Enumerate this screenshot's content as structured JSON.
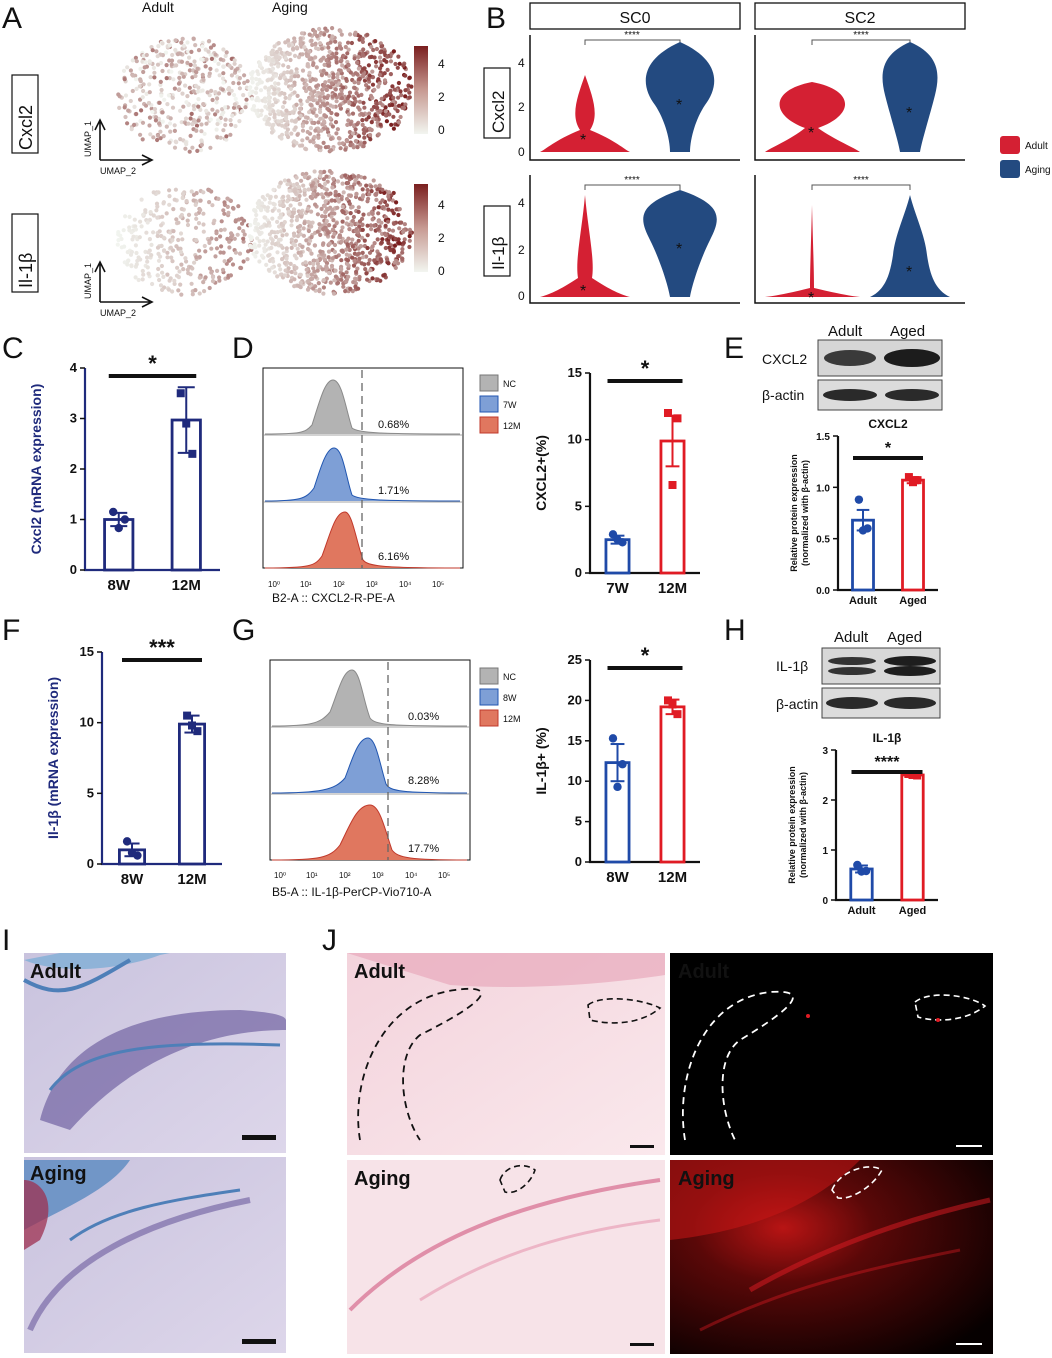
{
  "panel_labels": [
    "A",
    "B",
    "C",
    "D",
    "E",
    "F",
    "G",
    "H",
    "I",
    "J"
  ],
  "panelA": {
    "col_titles": [
      "Adult",
      "Aging"
    ],
    "row_labels": [
      "Cxcl2",
      "Il-1β"
    ],
    "axis_x": "UMAP_2",
    "axis_y": "UMAP_1",
    "colorbar_ticks": [
      "4",
      "2",
      "0"
    ],
    "colorbar_low": "#f2f5f0",
    "colorbar_high": "#7a1f1f"
  },
  "panelB": {
    "strip_titles": [
      "SC0",
      "SC2"
    ],
    "row_labels": [
      "Cxcl2",
      "Il-1β"
    ],
    "y_ticks": [
      "0",
      "2",
      "4"
    ],
    "significance": "****",
    "legend": [
      {
        "label": "Adult",
        "color": "#d42033"
      },
      {
        "label": "Aging",
        "color": "#234a80"
      }
    ]
  },
  "panelD": {
    "legend": [
      "NC",
      "7W",
      "12M"
    ],
    "percents": [
      "0.68%",
      "1.71%",
      "6.16%"
    ],
    "xlabel": "B2-A :: CXCL2-R-PE-A"
  },
  "panelE": {
    "blot_columns": [
      "Adult",
      "Aged"
    ],
    "blot_rows": [
      "CXCL2",
      "β-actin"
    ]
  },
  "panelG": {
    "legend": [
      "NC",
      "8W",
      "12M"
    ],
    "percents": [
      "0.03%",
      "8.28%",
      "17.7%"
    ],
    "xlabel": "B5-A :: IL-1β-PerCP-Vio710-A"
  },
  "panelH": {
    "blot_columns": [
      "Adult",
      "Aged"
    ],
    "blot_rows": [
      "IL-1β",
      "β-actin"
    ]
  },
  "panelI": {
    "labels": [
      "Adult",
      "Aging"
    ],
    "scale_bar": "100um"
  },
  "panelJ": {
    "labels": [
      "Adult",
      "Adult",
      "Aging",
      "Aging"
    ],
    "scale_bar": "50um"
  },
  "chart_data": [
    {
      "id": "C",
      "type": "bar",
      "categories": [
        "8W",
        "12M"
      ],
      "values": [
        1.0,
        2.97
      ],
      "errors": [
        0.13,
        0.65
      ],
      "points": [
        [
          1.15,
          1.0,
          0.83
        ],
        [
          3.5,
          2.3,
          2.9
        ]
      ],
      "colors": [
        "#1f2a7c",
        "#1f2a7c"
      ],
      "markers": [
        "circle",
        "square"
      ],
      "ylabel": "Cxcl2 (mRNA expression)",
      "ylim": [
        0,
        4
      ],
      "yticks": [
        0,
        1,
        2,
        3,
        4
      ],
      "significance": "*"
    },
    {
      "id": "D",
      "type": "bar",
      "categories": [
        "7W",
        "12M"
      ],
      "values": [
        2.5,
        9.9
      ],
      "errors": [
        0.3,
        1.9
      ],
      "points": [
        [
          2.9,
          2.3,
          2.5
        ],
        [
          12.0,
          11.6,
          6.6
        ]
      ],
      "colors": [
        "#1f4aa8",
        "#e01b24"
      ],
      "markers": [
        "circle",
        "square"
      ],
      "ylabel": "CXCL2+(%)",
      "ylim": [
        0,
        15
      ],
      "yticks": [
        0,
        5,
        10,
        15
      ],
      "significance": "*"
    },
    {
      "id": "E",
      "type": "bar",
      "title": "CXCL2",
      "categories": [
        "Adult",
        "Aged"
      ],
      "values": [
        0.68,
        1.07
      ],
      "errors": [
        0.1,
        0.03
      ],
      "points": [
        [
          0.88,
          0.6,
          0.58
        ],
        [
          1.1,
          1.07,
          1.05
        ]
      ],
      "colors": [
        "#1f4aa8",
        "#e01b24"
      ],
      "markers": [
        "circle",
        "square"
      ],
      "ylabel": "Relative protein expression (normalized with β-actin)",
      "ylim": [
        0,
        1.5
      ],
      "yticks": [
        0.0,
        0.5,
        1.0,
        1.5
      ],
      "significance": "*"
    },
    {
      "id": "F",
      "type": "bar",
      "categories": [
        "8W",
        "12M"
      ],
      "values": [
        1.0,
        9.9
      ],
      "errors": [
        0.45,
        0.6
      ],
      "points": [
        [
          1.6,
          0.6,
          0.8
        ],
        [
          10.5,
          9.4,
          9.8
        ]
      ],
      "colors": [
        "#1f2a7c",
        "#1f2a7c"
      ],
      "markers": [
        "circle",
        "square"
      ],
      "ylabel": "Il-1β (mRNA expression)",
      "ylim": [
        0,
        15
      ],
      "yticks": [
        0,
        5,
        10,
        15
      ],
      "significance": "***"
    },
    {
      "id": "G",
      "type": "bar",
      "categories": [
        "8W",
        "12M"
      ],
      "values": [
        12.3,
        19.2
      ],
      "errors": [
        2.3,
        0.9
      ],
      "points": [
        [
          15.3,
          12.1,
          9.3
        ],
        [
          20.0,
          18.3,
          19.5
        ]
      ],
      "colors": [
        "#1f4aa8",
        "#e01b24"
      ],
      "markers": [
        "circle",
        "square"
      ],
      "ylabel": "IL-1β+ (%)",
      "ylim": [
        0,
        25
      ],
      "yticks": [
        0,
        5,
        10,
        15,
        20,
        25
      ],
      "significance": "*"
    },
    {
      "id": "H",
      "type": "bar",
      "title": "IL-1β",
      "categories": [
        "Adult",
        "Aged"
      ],
      "values": [
        0.62,
        2.5
      ],
      "errors": [
        0.07,
        0.04
      ],
      "points": [
        [
          0.7,
          0.58,
          0.57
        ],
        [
          2.52,
          2.49,
          2.5
        ]
      ],
      "colors": [
        "#1f4aa8",
        "#e01b24"
      ],
      "markers": [
        "circle",
        "square"
      ],
      "ylabel": "Relative protein expression (normalized with β-actin)",
      "ylim": [
        0,
        3
      ],
      "yticks": [
        0,
        1,
        2,
        3
      ],
      "significance": "****"
    }
  ]
}
